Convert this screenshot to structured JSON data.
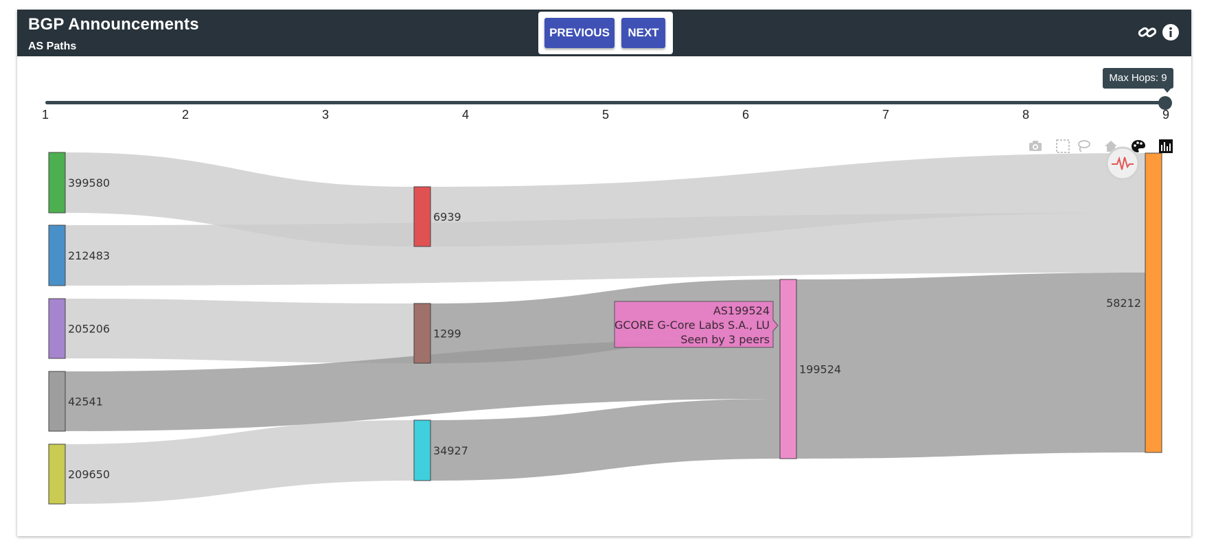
{
  "header": {
    "title": "BGP Announcements",
    "subtitle": "AS Paths",
    "prev_label": "PREVIOUS",
    "next_label": "NEXT",
    "bg_color": "#28333b",
    "button_color": "#3f51b5"
  },
  "slider": {
    "tooltip": "Max Hops: 9",
    "value": 9,
    "min": 1,
    "max": 9,
    "ticks": [
      "1",
      "2",
      "3",
      "4",
      "5",
      "6",
      "7",
      "8",
      "9"
    ]
  },
  "modebar": [
    "camera-icon",
    "box-select-icon",
    "lasso-select-icon",
    "home-icon",
    "palette-icon",
    "bar-chart-icon"
  ],
  "chart_data": {
    "type": "sankey",
    "nodes": [
      {
        "label": "399580",
        "color": "#4caf50"
      },
      {
        "label": "212483",
        "color": "#4a90c8"
      },
      {
        "label": "205206",
        "color": "#a685cf"
      },
      {
        "label": "42541",
        "color": "#9e9e9e"
      },
      {
        "label": "209650",
        "color": "#c9cb52"
      },
      {
        "label": "6939",
        "color": "#e05252"
      },
      {
        "label": "1299",
        "color": "#a0706a"
      },
      {
        "label": "34927",
        "color": "#3fcfdd"
      },
      {
        "label": "199524",
        "color": "#ec8dca"
      },
      {
        "label": "58212",
        "color": "#ff9a3a"
      }
    ],
    "links": [
      {
        "source": "399580",
        "target": "6939",
        "value": 1,
        "color": "#cccccc"
      },
      {
        "source": "212483",
        "target": "58212",
        "value": 1,
        "color": "#cccccc"
      },
      {
        "source": "205206",
        "target": "1299",
        "value": 1,
        "color": "#cccccc"
      },
      {
        "source": "42541",
        "target": "199524",
        "value": 1,
        "color": "#9a9a9a"
      },
      {
        "source": "209650",
        "target": "34927",
        "value": 1,
        "color": "#cccccc"
      },
      {
        "source": "6939",
        "target": "58212",
        "value": 1,
        "color": "#cccccc"
      },
      {
        "source": "1299",
        "target": "199524",
        "value": 1,
        "color": "#9a9a9a"
      },
      {
        "source": "34927",
        "target": "199524",
        "value": 1,
        "color": "#9a9a9a"
      },
      {
        "source": "199524",
        "target": "58212",
        "value": 3,
        "color": "#9a9a9a"
      }
    ],
    "hover": {
      "line1": "AS199524",
      "line2": "GCORE G-Core Labs S.A., LU",
      "line3": "Seen by 3 peers"
    }
  }
}
